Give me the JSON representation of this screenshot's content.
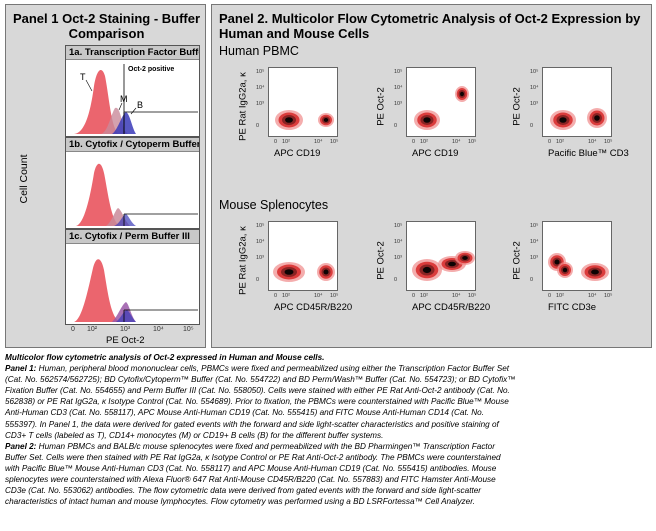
{
  "panel1": {
    "title": "Panel 1 Oct-2 Staining - Buffer Comparison",
    "y_axis_label": "Cell Count",
    "x_axis_label": "PE  Oct-2",
    "histograms": [
      {
        "label": "1a. Transcription Factor Buffer",
        "gate_label": "Oct-2 positive",
        "peak_labels": [
          "T",
          "M",
          "B"
        ]
      },
      {
        "label": "1b. Cytofix / Cytoperm Buffer"
      },
      {
        "label": "1c. Cytofix / Perm Buffer III"
      }
    ],
    "x_ticks": [
      "0",
      "10²",
      "10³",
      "10⁴",
      "10⁵"
    ],
    "colors": {
      "T": "#e84a55",
      "M": "#c98a9a",
      "B": "#3a3ab8"
    }
  },
  "panel2": {
    "title": "Panel 2.  Multicolor Flow Cytometric Analysis of Oct-2 Expression by Human and Mouse Cells",
    "human_label": "Human PBMC",
    "mouse_label": "Mouse Splenocytes",
    "plots": [
      {
        "ylabel": "PE  Rat IgG2a, κ",
        "xlabel": "APC  CD19"
      },
      {
        "ylabel": "PE  Oct-2",
        "xlabel": "APC  CD19"
      },
      {
        "ylabel": "PE  Oct-2",
        "xlabel": "Pacific Blue™  CD3"
      },
      {
        "ylabel": "PE  Rat IgG2a, κ",
        "xlabel": "APC  CD45R/B220"
      },
      {
        "ylabel": "PE  Oct-2",
        "xlabel": "APC  CD45R/B220"
      },
      {
        "ylabel": "PE  Oct-2",
        "xlabel": "FITC  CD3e"
      }
    ],
    "ticks": [
      "0",
      "10²",
      "10³",
      "10⁴",
      "10⁵"
    ]
  },
  "caption": {
    "title": "Multicolor flow cytometric analysis of Oct-2 expressed in Human and Mouse cells.",
    "lines": [
      [
        "Panel 1:",
        " Human, peripheral blood mononuclear cells, PBMCs were fixed and permeabilized using either the Transcription Factor Buffer Set"
      ],
      [
        "",
        "(Cat. No. 562574/562725); BD Cytofix/Cytoperm™ Buffer (Cat. No. 554722) and BD Perm/Wash™ Buffer (Cat. No. 554723); or BD Cytofix™"
      ],
      [
        "",
        "Fixation Buffer (Cat. No. 554655) and Perm Buffer III (Cat. No. 558050). Cells were stained with either PE Rat Anti-Oct-2 antibody (Cat. No."
      ],
      [
        "",
        "562838) or PE Rat IgG2a, κ Isotype Control (Cat. No. 554689). Prior to fixation, the PBMCs were counterstained with Pacific Blue™ Mouse"
      ],
      [
        "",
        "Anti-Human CD3 (Cat. No. 558117), APC Mouse Anti-Human CD19 (Cat. No. 555415) and FITC Mouse Anti-Human CD14 (Cat. No."
      ],
      [
        "",
        "555397). In Panel 1, the data were derived for gated events with the forward and side light-scatter characteristics and positive staining of"
      ],
      [
        "",
        "CD3+ T cells (labeled as T), CD14+ monocytes (M) or CD19+ B cells (B) for the different buffer systems."
      ],
      [
        "Panel 2:",
        " Human PBMCs and BALB/c mouse splenocytes were fixed and permeabilized with the BD Pharmingen™ Transcription Factor"
      ],
      [
        "",
        "Buffer Set. Cells were then stained with PE Rat IgG2a, κ Isotype Control or PE Rat Anti-Oct-2 antibody. The PBMCs were counterstained"
      ],
      [
        "",
        "with Pacific Blue™ Mouse Anti-Human CD3 (Cat. No. 558117) and APC Mouse Anti-Human CD19 (Cat. No. 555415) antibodies. Mouse"
      ],
      [
        "",
        "splenocytes were counterstained with Alexa Fluor® 647 Rat Anti-Mouse CD45R/B220 (Cat. No. 557883) and FITC Hamster Anti-Mouse"
      ],
      [
        "",
        "CD3e (Cat. No. 553062) antibodies. The flow cytometric data were derived from gated events with the forward and side light-scatter"
      ],
      [
        "",
        "characteristics of intact human and mouse lymphocytes. Flow cytometry was performed using a BD LSRFortessa™ Cell Analyzer."
      ]
    ]
  }
}
